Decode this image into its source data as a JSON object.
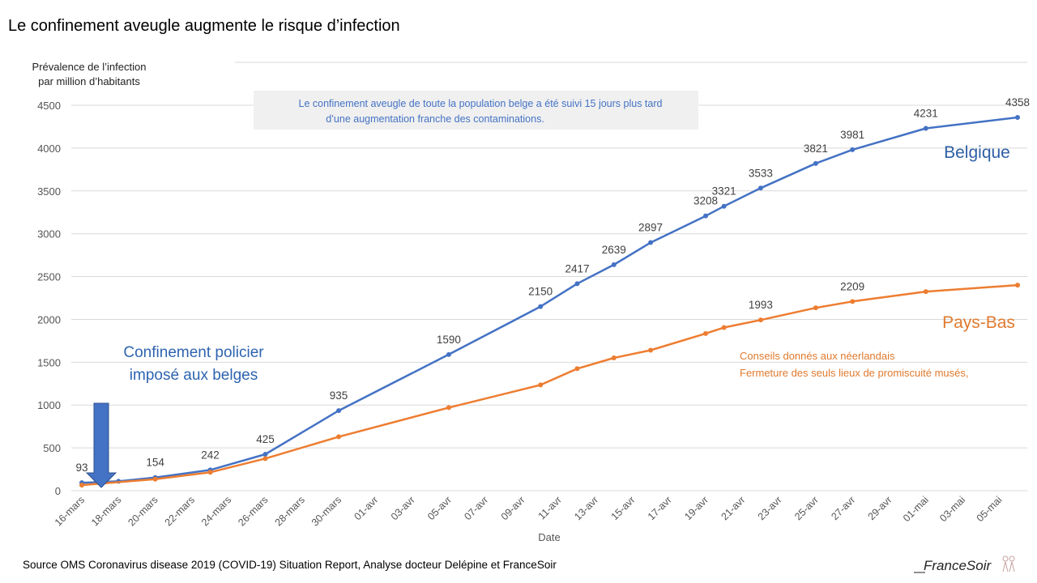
{
  "title": "Le confinement aveugle augmente le risque d’infection",
  "source": "Source OMS Coronavirus disease 2019 (COVID-19) Situation Report, Analyse docteur Delépine et FranceSoir",
  "logo_text": "FranceSoir",
  "colors": {
    "belgique": "#4472c4",
    "pays_bas": "#ed7d31",
    "arrow": "#4472c4",
    "grid": "#d9d9d9"
  },
  "annotations": {
    "top_box": [
      "Le confinement  aveugle de toute  la population belge a été suivi 15 jours plus tard",
      "d’une augmentation franche des contaminations."
    ],
    "policier": [
      "Confinement policier",
      "imposé aux belges"
    ],
    "pays_bas_note": [
      "Conseils donnés aux néerlandais",
      "Fermeture  des  seuls lieux de promiscuité musés,"
    ]
  },
  "chart_data": {
    "type": "line",
    "title": "Le confinement aveugle augmente le risque d’infection",
    "ylabel": [
      "Prévalence de l’infection",
      "par million d’habitants"
    ],
    "xlabel": "Date",
    "ylim": [
      0,
      4500
    ],
    "yticks": [
      0,
      500,
      1000,
      1500,
      2000,
      2500,
      3000,
      3500,
      4000,
      4500
    ],
    "grid": true,
    "xrange_days": [
      0,
      51
    ],
    "xticks": [
      {
        "day": 0,
        "label": "16-mars"
      },
      {
        "day": 2,
        "label": "18-mars"
      },
      {
        "day": 4,
        "label": "20-mars"
      },
      {
        "day": 6,
        "label": "22-mars"
      },
      {
        "day": 8,
        "label": "24-mars"
      },
      {
        "day": 10,
        "label": "26-mars"
      },
      {
        "day": 12,
        "label": "28-mars"
      },
      {
        "day": 14,
        "label": "30-mars"
      },
      {
        "day": 16,
        "label": "01-avr"
      },
      {
        "day": 18,
        "label": "03-avr"
      },
      {
        "day": 20,
        "label": "05-avr"
      },
      {
        "day": 22,
        "label": "07-avr"
      },
      {
        "day": 24,
        "label": "09-avr"
      },
      {
        "day": 26,
        "label": "11-avr"
      },
      {
        "day": 28,
        "label": "13-avr"
      },
      {
        "day": 30,
        "label": "15-avr"
      },
      {
        "day": 32,
        "label": "17-avr"
      },
      {
        "day": 34,
        "label": "19-avr"
      },
      {
        "day": 36,
        "label": "21-avr"
      },
      {
        "day": 38,
        "label": "23-avr"
      },
      {
        "day": 40,
        "label": "25-avr"
      },
      {
        "day": 42,
        "label": "27-avr"
      },
      {
        "day": 44,
        "label": "29-avr"
      },
      {
        "day": 46,
        "label": "01-mai"
      },
      {
        "day": 48,
        "label": "03-mai"
      },
      {
        "day": 50,
        "label": "05-mai"
      }
    ],
    "series": [
      {
        "name": "Belgique",
        "points": [
          {
            "day": 0,
            "y": 93,
            "label": "93"
          },
          {
            "day": 2,
            "y": 110
          },
          {
            "day": 4,
            "y": 154,
            "label": "154"
          },
          {
            "day": 7,
            "y": 242,
            "label": "242"
          },
          {
            "day": 10,
            "y": 425,
            "label": "425"
          },
          {
            "day": 14,
            "y": 935,
            "label": "935"
          },
          {
            "day": 20,
            "y": 1590,
            "label": "1590"
          },
          {
            "day": 25,
            "y": 2150,
            "label": "2150"
          },
          {
            "day": 27,
            "y": 2417,
            "label": "2417"
          },
          {
            "day": 29,
            "y": 2639,
            "label": "2639"
          },
          {
            "day": 31,
            "y": 2897,
            "label": "2897"
          },
          {
            "day": 34,
            "y": 3208,
            "label": "3208"
          },
          {
            "day": 35,
            "y": 3321,
            "label": "3321"
          },
          {
            "day": 37,
            "y": 3533,
            "label": "3533"
          },
          {
            "day": 40,
            "y": 3821,
            "label": "3821"
          },
          {
            "day": 42,
            "y": 3981,
            "label": "3981"
          },
          {
            "day": 46,
            "y": 4231,
            "label": "4231"
          },
          {
            "day": 51,
            "y": 4358,
            "label": "4358"
          }
        ]
      },
      {
        "name": "Pays-Bas",
        "points": [
          {
            "day": 0,
            "y": 65
          },
          {
            "day": 4,
            "y": 135
          },
          {
            "day": 7,
            "y": 215
          },
          {
            "day": 10,
            "y": 375
          },
          {
            "day": 14,
            "y": 630
          },
          {
            "day": 20,
            "y": 970
          },
          {
            "day": 25,
            "y": 1235
          },
          {
            "day": 27,
            "y": 1425
          },
          {
            "day": 29,
            "y": 1550
          },
          {
            "day": 31,
            "y": 1640
          },
          {
            "day": 34,
            "y": 1835
          },
          {
            "day": 35,
            "y": 1905
          },
          {
            "day": 37,
            "y": 1993,
            "label": "1993"
          },
          {
            "day": 40,
            "y": 2135
          },
          {
            "day": 42,
            "y": 2209,
            "label": "2209"
          },
          {
            "day": 46,
            "y": 2325
          },
          {
            "day": 51,
            "y": 2400
          }
        ]
      }
    ]
  }
}
